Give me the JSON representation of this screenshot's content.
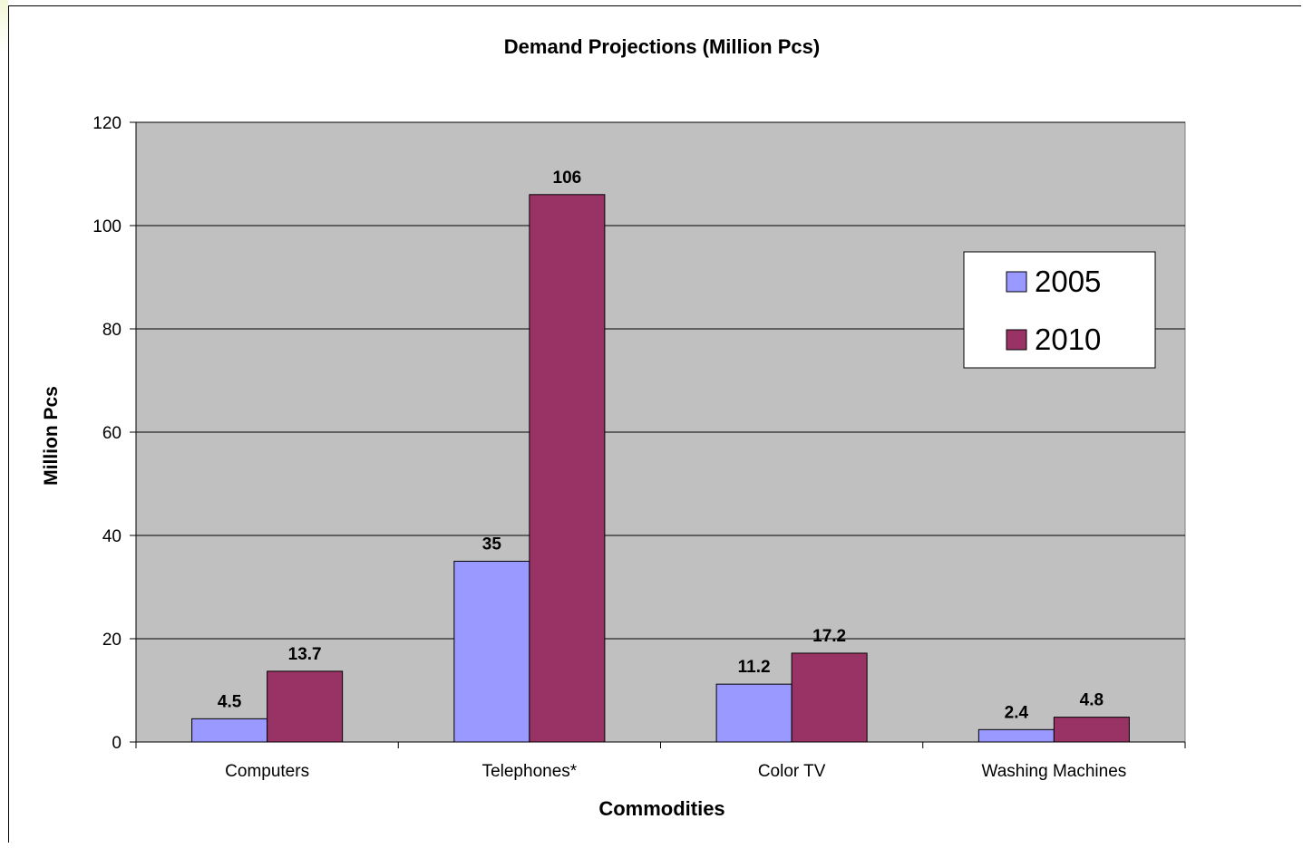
{
  "chart_data": {
    "type": "bar",
    "title": "Demand Projections (Million Pcs)",
    "xlabel": "Commodities",
    "ylabel": "Million Pcs",
    "categories": [
      "Computers",
      "Telephones*",
      "Color TV",
      "Washing Machines"
    ],
    "series": [
      {
        "name": "2005",
        "values": [
          4.5,
          35,
          11.2,
          2.4
        ],
        "labels": [
          "4.5",
          "35",
          "11.2",
          "2.4"
        ],
        "color": "#9999ff"
      },
      {
        "name": "2010",
        "values": [
          13.7,
          106,
          17.2,
          4.8
        ],
        "labels": [
          "13.7",
          "106",
          "17.2",
          "4.8"
        ],
        "color": "#993366"
      }
    ],
    "ylim": [
      0,
      120
    ],
    "yticks": [
      0,
      20,
      40,
      60,
      80,
      100,
      120
    ],
    "ytick_labels": [
      "0",
      "20",
      "40",
      "60",
      "80",
      "100",
      "120"
    ],
    "grid": true,
    "plot_background": "#c0c0c0",
    "legend_position": "right"
  }
}
